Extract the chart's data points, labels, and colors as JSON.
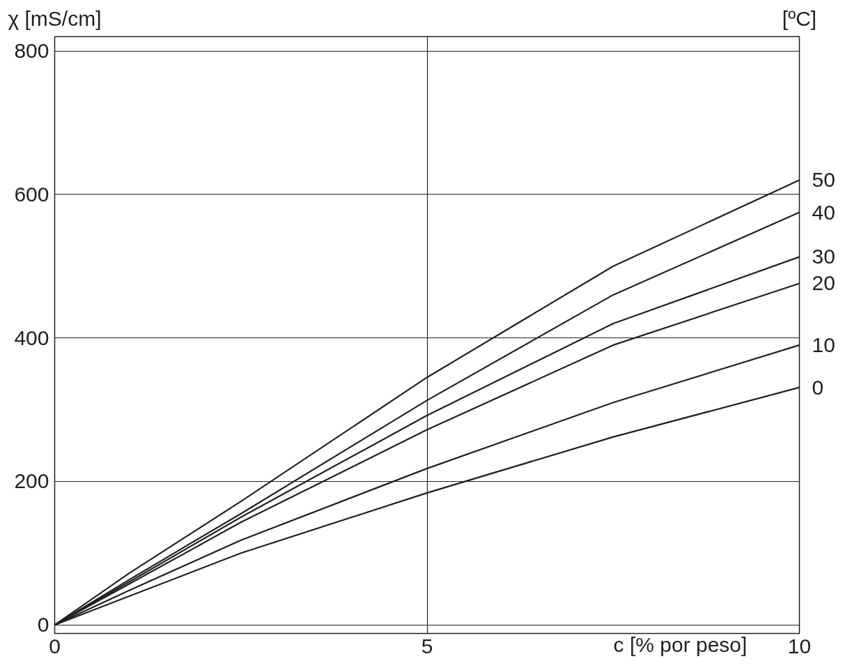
{
  "chart_data": {
    "type": "line",
    "xlabel": "c [% por peso]",
    "ylabel": "χ [mS/cm]",
    "annotations": [
      "[ºC]"
    ],
    "x": [
      0,
      1,
      2.5,
      5,
      7.5,
      10
    ],
    "series": [
      {
        "name": "50",
        "color": "#231f20",
        "values": [
          0,
          72,
          172,
          345,
          500,
          620
        ]
      },
      {
        "name": "40",
        "color": "#231f20",
        "values": [
          0,
          63,
          155,
          313,
          460,
          575
        ]
      },
      {
        "name": "30",
        "color": "#231f20",
        "values": [
          0,
          60,
          150,
          292,
          420,
          513
        ]
      },
      {
        "name": "20",
        "color": "#231f20",
        "values": [
          0,
          57,
          143,
          272,
          390,
          476
        ]
      },
      {
        "name": "10",
        "color": "#231f20",
        "values": [
          0,
          48,
          118,
          218,
          310,
          390
        ]
      },
      {
        "name": "0",
        "color": "#231f20",
        "values": [
          0,
          40,
          100,
          184,
          262,
          331
        ]
      }
    ],
    "xlim": [
      0,
      10
    ],
    "xticks": [
      0,
      5,
      10
    ],
    "ylim": [
      -12,
      820
    ],
    "yticks": [
      0,
      200,
      400,
      600,
      800
    ],
    "grid": true,
    "legend": false,
    "marker": "none",
    "line_style": "solid"
  }
}
